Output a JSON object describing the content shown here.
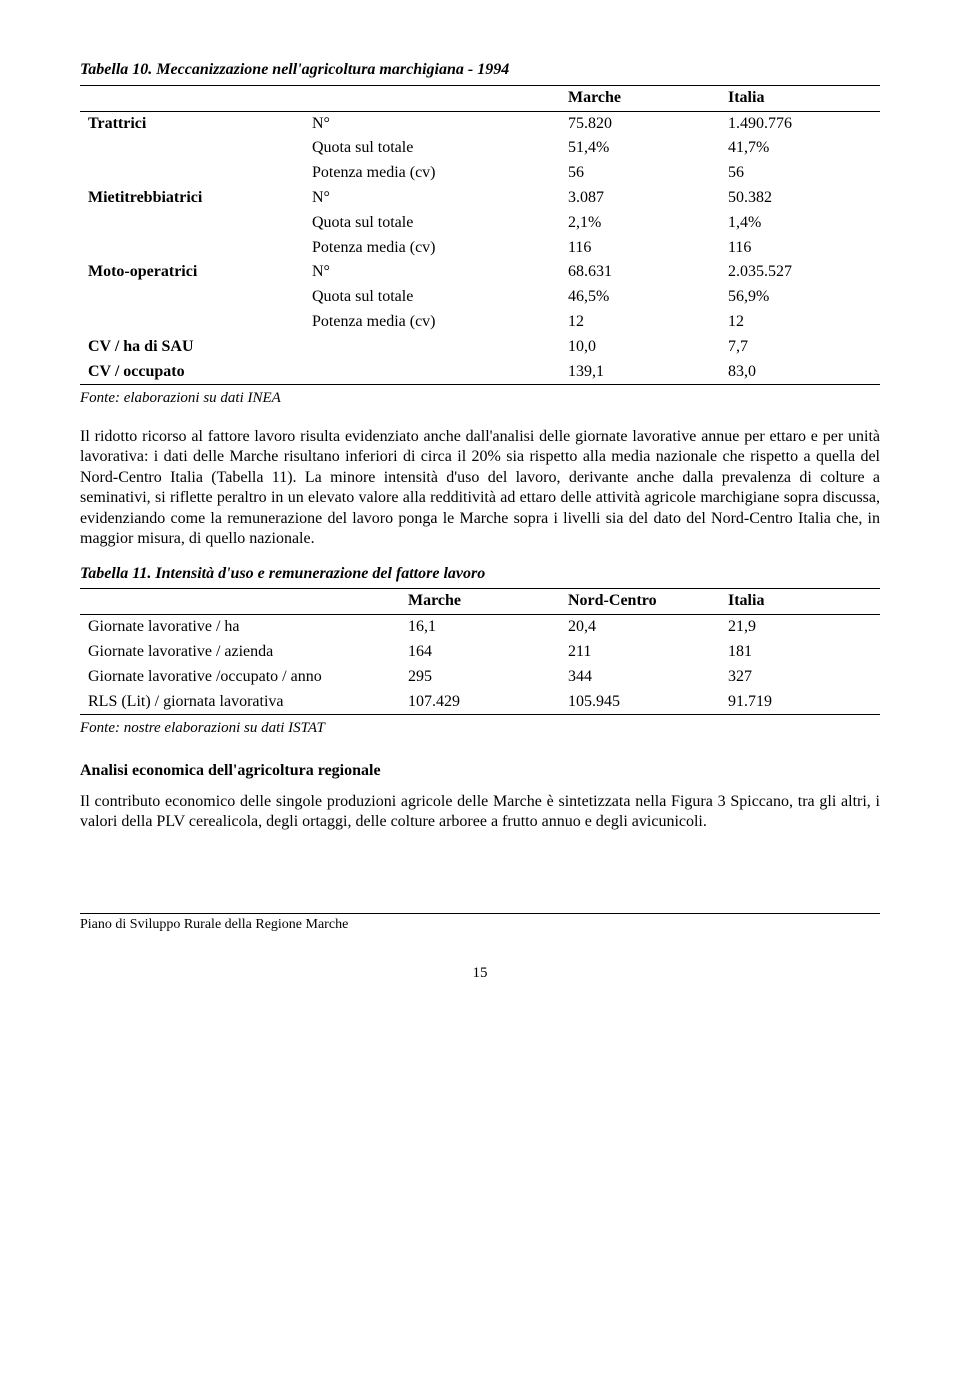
{
  "table10": {
    "title": "Tabella 10. Meccanizzazione nell'agricoltura marchigiana - 1994",
    "head": {
      "c1": "",
      "c2": "",
      "c3": "Marche",
      "c4": "Italia"
    },
    "rows": [
      {
        "group": "Trattrici",
        "sub": "N°",
        "v1": "75.820",
        "v2": "1.490.776"
      },
      {
        "group": "",
        "sub": "Quota sul totale",
        "v1": "51,4%",
        "v2": "41,7%"
      },
      {
        "group": "",
        "sub": "Potenza media (cv)",
        "v1": "56",
        "v2": "56"
      },
      {
        "group": "Mietitrebbiatrici",
        "sub": "N°",
        "v1": "3.087",
        "v2": "50.382"
      },
      {
        "group": "",
        "sub": "Quota sul totale",
        "v1": "2,1%",
        "v2": "1,4%"
      },
      {
        "group": "",
        "sub": "Potenza media (cv)",
        "v1": "116",
        "v2": "116"
      },
      {
        "group": "Moto-operatrici",
        "sub": "N°",
        "v1": "68.631",
        "v2": "2.035.527"
      },
      {
        "group": "",
        "sub": "Quota sul totale",
        "v1": "46,5%",
        "v2": "56,9%"
      },
      {
        "group": "",
        "sub": "Potenza media (cv)",
        "v1": "12",
        "v2": "12"
      },
      {
        "group": "CV / ha di SAU",
        "sub": "",
        "v1": "10,0",
        "v2": "7,7"
      },
      {
        "group": "CV / occupato",
        "sub": "",
        "v1": "139,1",
        "v2": "83,0"
      }
    ],
    "source": "Fonte: elaborazioni su dati INEA"
  },
  "para1": "Il ridotto ricorso al fattore lavoro risulta evidenziato anche dall'analisi delle giornate lavorative annue per ettaro e per unità lavorativa: i dati delle Marche risultano inferiori di circa il 20% sia rispetto alla media nazionale che rispetto a quella del Nord-Centro Italia (Tabella 11). La minore intensità d'uso del lavoro, derivante anche dalla prevalenza di colture a seminativi, si riflette peraltro in un elevato valore alla redditività ad ettaro delle attività agricole marchigiane sopra discussa, evidenziando come la remunerazione del lavoro ponga le Marche sopra i livelli sia del dato del Nord-Centro Italia che, in maggior misura, di quello nazionale.",
  "table11": {
    "title": "Tabella 11. Intensità d'uso e remunerazione del fattore lavoro",
    "head": {
      "c1": "",
      "c2": "Marche",
      "c3": "Nord-Centro",
      "c4": "Italia"
    },
    "rows": [
      {
        "label": "Giornate lavorative / ha",
        "v1": "16,1",
        "v2": "20,4",
        "v3": "21,9"
      },
      {
        "label": "Giornate lavorative / azienda",
        "v1": "164",
        "v2": "211",
        "v3": "181"
      },
      {
        "label": "Giornate lavorative /occupato / anno",
        "v1": "295",
        "v2": "344",
        "v3": "327"
      },
      {
        "label": "RLS (Lit) / giornata lavorativa",
        "v1": "107.429",
        "v2": "105.945",
        "v3": "91.719"
      }
    ],
    "source": "Fonte: nostre elaborazioni su dati ISTAT"
  },
  "section": {
    "heading": "Analisi economica dell'agricoltura regionale",
    "para": "Il contributo economico delle singole produzioni agricole delle Marche è sintetizzata nella Figura 3 Spiccano, tra gli altri, i valori della PLV cerealicola, degli ortaggi, delle colture arboree a frutto annuo e degli avicunicoli."
  },
  "footer": {
    "text": "Piano di Sviluppo Rurale della Regione Marche",
    "page": "15"
  }
}
